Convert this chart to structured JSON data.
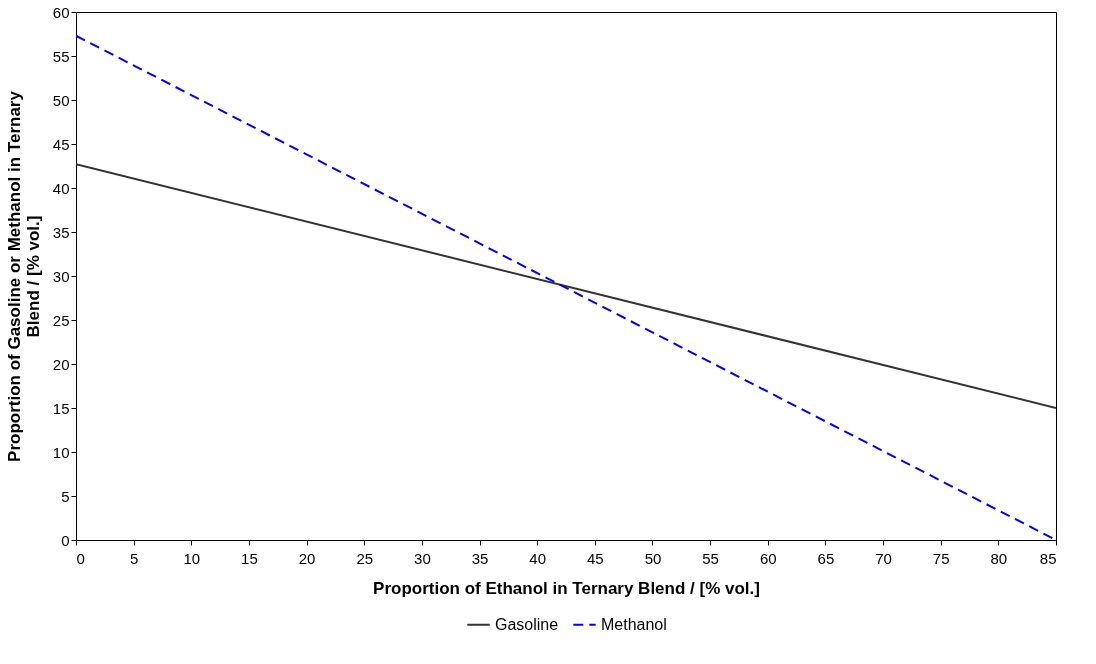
{
  "chart_data": {
    "type": "line",
    "xlabel": "Proportion of Ethanol in Ternary Blend / [% vol.]",
    "ylabel": "Proportion of Gasoline or Methanol in Ternary Blend / [% vol.]",
    "x": [
      0,
      85
    ],
    "series": [
      {
        "name": "Gasoline",
        "color": "#333333",
        "line_style": "solid",
        "values": [
          42.7,
          15
        ]
      },
      {
        "name": "Methanol",
        "color": "#0000ff",
        "line_style": "dashed",
        "values": [
          57.3,
          0
        ]
      }
    ],
    "xlim": [
      0,
      85
    ],
    "xticks": [
      0,
      5,
      10,
      15,
      20,
      25,
      30,
      35,
      40,
      45,
      50,
      55,
      60,
      65,
      70,
      75,
      80,
      85
    ],
    "ylim": [
      0,
      60
    ],
    "yticks": [
      0,
      5,
      10,
      15,
      20,
      25,
      30,
      35,
      40,
      45,
      50,
      55,
      60
    ],
    "grid": false,
    "legend": "bottom",
    "marker": "none"
  }
}
